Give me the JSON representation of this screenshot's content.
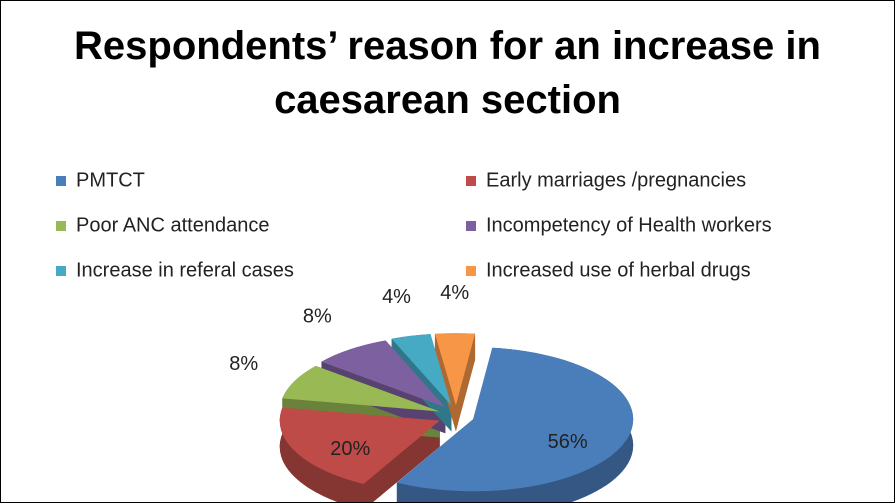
{
  "chart_data": {
    "type": "pie",
    "title": "Respondents’ reason for an increase in caesarean section",
    "categories": [
      "PMTCT",
      "Early marriages /pregnancies",
      "Poor ANC attendance",
      "Incompetency of Health workers",
      "Increase in referal cases",
      "Increased use of herbal drugs"
    ],
    "values": [
      56,
      20,
      8,
      8,
      4,
      4
    ],
    "value_labels": [
      "56%",
      "20%",
      "8%",
      "8%",
      "4%",
      "4%"
    ],
    "colors": [
      "#4a7ebb",
      "#be4b48",
      "#98b954",
      "#7d60a0",
      "#46aac5",
      "#f79646"
    ],
    "legend": "top"
  }
}
